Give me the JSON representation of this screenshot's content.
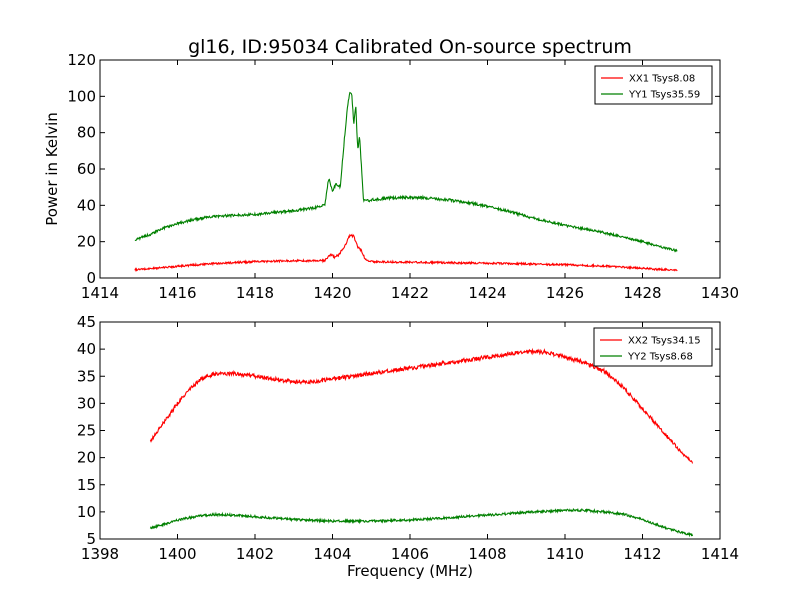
{
  "figure": {
    "title": "gl16, ID:95034 Calibrated On-source spectrum",
    "ylabel": "Power in Kelvin",
    "xlabel": "Frequency (MHz)"
  },
  "chart_data": [
    {
      "type": "line",
      "title": "gl16, ID:95034 Calibrated On-source spectrum",
      "xlabel": "",
      "ylabel": "Power in Kelvin",
      "xlim": [
        1414,
        1430
      ],
      "ylim": [
        0,
        120
      ],
      "xticks": [
        1414,
        1416,
        1418,
        1420,
        1422,
        1424,
        1426,
        1428,
        1430
      ],
      "yticks": [
        0,
        20,
        40,
        60,
        80,
        100,
        120
      ],
      "grid": false,
      "legend_position": "top-right",
      "series": [
        {
          "name": "XX1 Tsys8.08",
          "color": "#ff0000",
          "x": [
            1414.9,
            1415.5,
            1416,
            1417,
            1418,
            1419,
            1419.8,
            1419.95,
            1420.05,
            1420.15,
            1420.3,
            1420.45,
            1420.55,
            1420.65,
            1420.75,
            1420.85,
            1421,
            1422,
            1423,
            1424,
            1425,
            1426,
            1427,
            1427.5,
            1428,
            1428.5,
            1428.9
          ],
          "y": [
            4.5,
            5.5,
            6.5,
            8,
            9,
            9.5,
            9.5,
            13,
            11.5,
            12.5,
            17,
            23.5,
            23,
            17,
            15,
            10,
            9,
            8.7,
            8.4,
            8.2,
            7.8,
            7.3,
            6.6,
            6,
            5.3,
            4.7,
            4.2
          ]
        },
        {
          "name": "YY1 Tsys35.59",
          "color": "#008000",
          "x": [
            1414.9,
            1415.3,
            1415.7,
            1416,
            1416.5,
            1417,
            1417.5,
            1418,
            1418.5,
            1419,
            1419.5,
            1419.8,
            1419.9,
            1420,
            1420.1,
            1420.2,
            1420.3,
            1420.4,
            1420.45,
            1420.5,
            1420.55,
            1420.6,
            1420.65,
            1420.7,
            1420.75,
            1420.8,
            1420.9,
            1421,
            1421.5,
            1422,
            1422.5,
            1423,
            1423.5,
            1424,
            1424.5,
            1425,
            1425.5,
            1426,
            1426.5,
            1427,
            1427.5,
            1428,
            1428.5,
            1428.9
          ],
          "y": [
            21,
            24,
            28,
            30,
            32.5,
            34,
            34.5,
            35,
            36,
            37,
            38.5,
            40,
            55,
            48,
            52,
            50,
            75,
            97,
            103,
            100,
            85,
            96,
            70,
            78,
            60,
            43,
            42.5,
            43,
            44,
            44.5,
            44,
            43,
            41.5,
            39.5,
            37,
            34,
            31.5,
            29,
            27,
            25,
            22.5,
            20,
            17,
            15
          ]
        }
      ]
    },
    {
      "type": "line",
      "xlabel": "Frequency (MHz)",
      "ylabel": "",
      "xlim": [
        1398,
        1414
      ],
      "ylim": [
        5,
        45
      ],
      "xticks": [
        1398,
        1400,
        1402,
        1404,
        1406,
        1408,
        1410,
        1412,
        1414
      ],
      "yticks": [
        5,
        10,
        15,
        20,
        25,
        30,
        35,
        40,
        45
      ],
      "grid": false,
      "legend_position": "top-right",
      "series": [
        {
          "name": "XX2 Tsys34.15",
          "color": "#ff0000",
          "x": [
            1399.3,
            1399.6,
            1400,
            1400.3,
            1400.6,
            1401,
            1401.5,
            1402,
            1402.5,
            1403,
            1403.5,
            1404,
            1404.5,
            1405,
            1405.5,
            1406,
            1406.5,
            1407,
            1407.5,
            1408,
            1408.5,
            1409,
            1409.5,
            1410,
            1410.5,
            1411,
            1411.5,
            1412,
            1412.5,
            1413,
            1413.3
          ],
          "y": [
            23,
            26,
            30,
            32.5,
            34.5,
            35.5,
            35.5,
            35,
            34.5,
            34,
            34,
            34.5,
            35,
            35.5,
            36,
            36.5,
            37,
            37.5,
            38,
            38.5,
            39,
            39.5,
            39.5,
            38.5,
            37.5,
            36,
            33,
            29,
            25,
            21,
            19
          ]
        },
        {
          "name": "YY2 Tsys8.68",
          "color": "#008000",
          "x": [
            1399.3,
            1399.7,
            1400,
            1400.5,
            1401,
            1401.5,
            1402,
            1403,
            1404,
            1405,
            1406,
            1407,
            1408,
            1409,
            1410,
            1410.5,
            1411,
            1411.5,
            1412,
            1412.5,
            1413,
            1413.3
          ],
          "y": [
            7,
            7.8,
            8.5,
            9.2,
            9.5,
            9.4,
            9.1,
            8.6,
            8.3,
            8.3,
            8.5,
            8.9,
            9.4,
            9.9,
            10.3,
            10.3,
            10,
            9.6,
            8.6,
            7.3,
            6.2,
            5.7
          ]
        }
      ]
    }
  ]
}
